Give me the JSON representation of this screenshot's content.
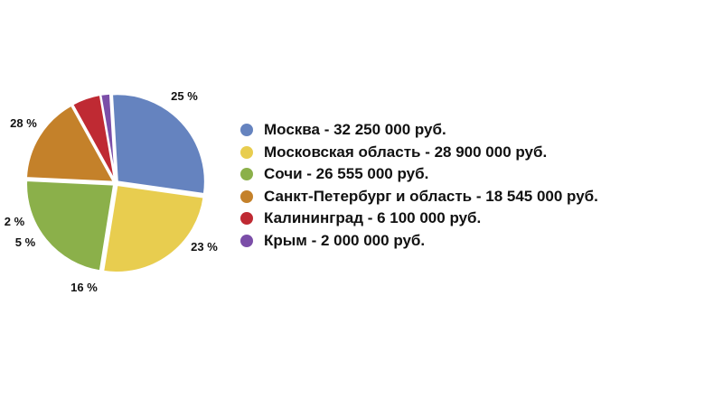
{
  "chart_data": {
    "type": "pie",
    "title": "",
    "slices": [
      {
        "label": "Москва - 32 250 000 руб.",
        "value": 32250000,
        "percent_label": "28 %",
        "color": "#6583bf"
      },
      {
        "label": "Московская область - 28 900 000 руб.",
        "value": 28900000,
        "percent_label": "25 %",
        "color": "#e8cd4f"
      },
      {
        "label": "Сочи - 26 555 000 руб.",
        "value": 26555000,
        "percent_label": "23 %",
        "color": "#8bb04a"
      },
      {
        "label": "Санкт-Петербург и область - 18 545 000 руб.",
        "value": 18545000,
        "percent_label": "16 %",
        "color": "#c4812a"
      },
      {
        "label": "Калининград - 6 100 000 руб.",
        "value": 6100000,
        "percent_label": "5 %",
        "color": "#bf2a33"
      },
      {
        "label": "Крым - 2 000 000 руб.",
        "value": 2000000,
        "percent_label": "2 %",
        "color": "#7b4ea8"
      }
    ],
    "legend_position": "right"
  }
}
